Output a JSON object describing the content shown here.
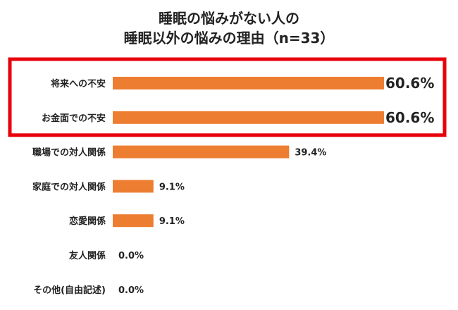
{
  "chart_data": {
    "type": "bar",
    "orientation": "horizontal",
    "title_line1": "睡眠の悩みがない人の",
    "title_line2": "睡眠以外の悩みの理由（n=33）",
    "categories": [
      "将来への不安",
      "お金面での不安",
      "職場での対人関係",
      "家庭での対人関係",
      "恋愛関係",
      "友人関係",
      "その他(自由記述)"
    ],
    "values": [
      60.6,
      60.6,
      39.4,
      9.1,
      9.1,
      0.0,
      0.0
    ],
    "value_labels": [
      "60.6%",
      "60.6%",
      "39.4%",
      "9.1%",
      "9.1%",
      "0.0%",
      "0.0%"
    ],
    "highlighted": [
      0,
      1
    ],
    "bar_color": "#ED7D31",
    "highlight_color": "#E8000B",
    "grid": false,
    "legend": "none"
  }
}
